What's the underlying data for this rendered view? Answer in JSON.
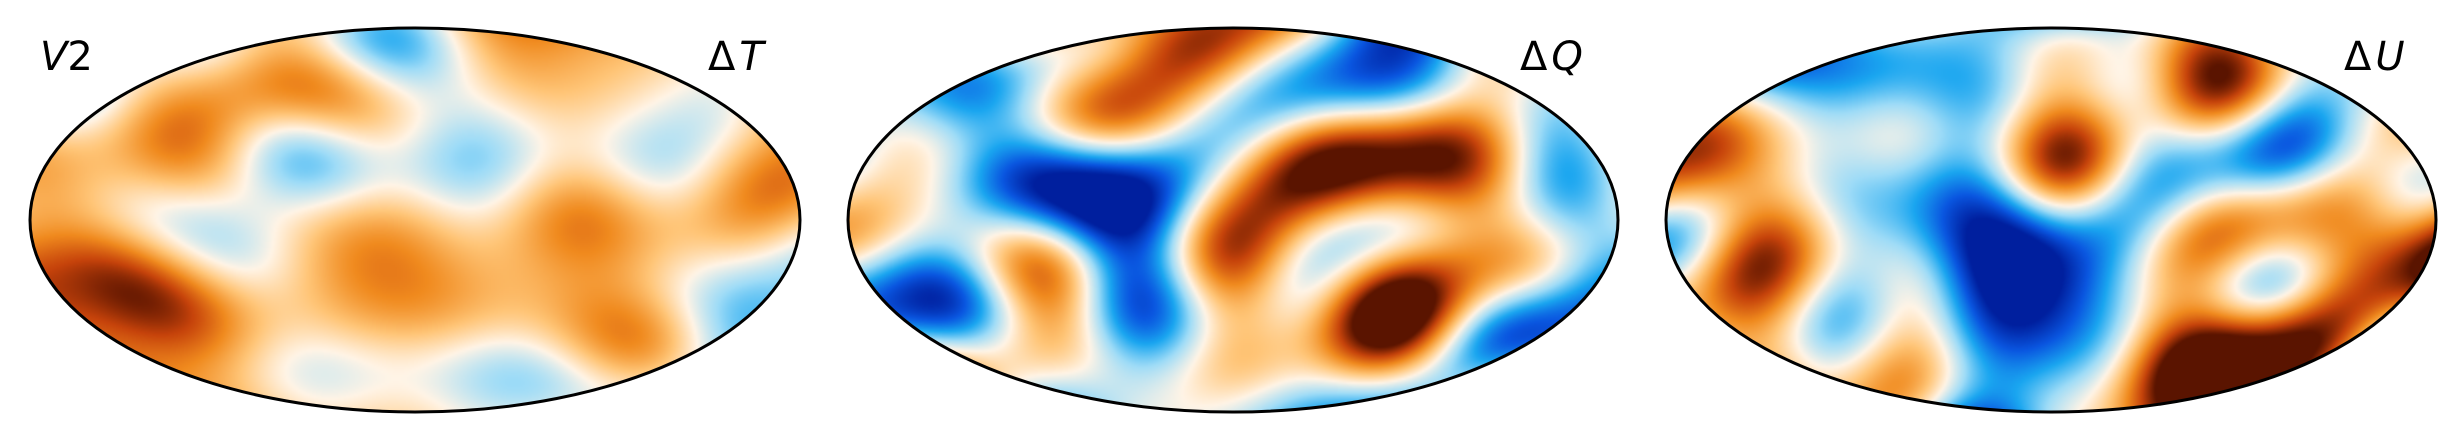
{
  "panels": [
    {
      "id": "panel-1",
      "label_left": {
        "prefix": "",
        "var": "V",
        "suffix": "2"
      },
      "label_right": {
        "prefix": "Δ",
        "var": "T"
      },
      "bias": 0.22,
      "scale": 0.55,
      "seed": 11
    },
    {
      "id": "panel-2",
      "label_left": null,
      "label_right": {
        "prefix": "Δ",
        "var": "Q"
      },
      "bias": 0.0,
      "scale": 1.0,
      "seed": 29
    },
    {
      "id": "panel-3",
      "label_left": null,
      "label_right": {
        "prefix": "Δ",
        "var": "U"
      },
      "bias": 0.0,
      "scale": 1.0,
      "seed": 47
    }
  ],
  "colormap": {
    "name": "blue-white-orange",
    "stops": [
      "#001f9e",
      "#0a56e0",
      "#1aa6f0",
      "#9fdcf7",
      "#fff4e6",
      "#ffc577",
      "#f08a1e",
      "#c6430b",
      "#5a1400"
    ]
  }
}
